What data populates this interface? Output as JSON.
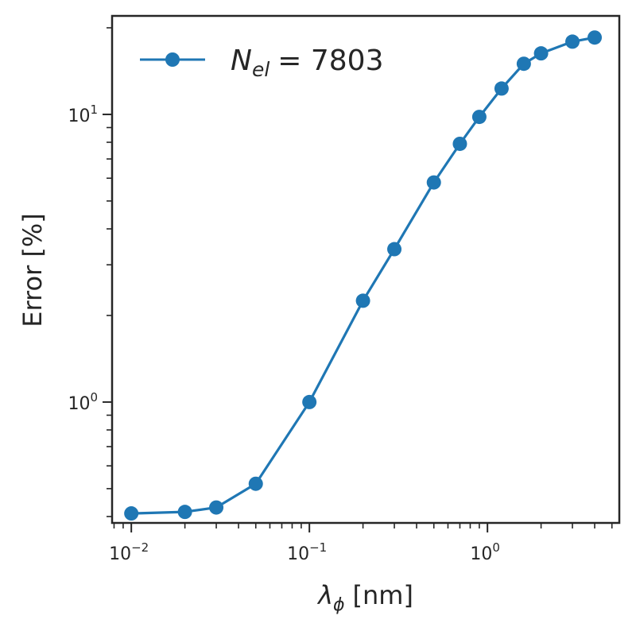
{
  "chart_data": {
    "type": "line",
    "xlabel_symbol": "λ",
    "xlabel_sub": "ϕ",
    "xlabel_unit": "[nm]",
    "ylabel": "Error [%]",
    "xscale": "log",
    "yscale": "log",
    "xlim": [
      0.0078,
      5.5
    ],
    "ylim": [
      0.38,
      22
    ],
    "grid": false,
    "legend_placement": "top-left",
    "x_ticks": [
      {
        "value": 0.01,
        "base": "10",
        "exp": "−2"
      },
      {
        "value": 0.1,
        "base": "10",
        "exp": "−1"
      },
      {
        "value": 1,
        "base": "10",
        "exp": "0"
      }
    ],
    "y_ticks": [
      {
        "value": 1,
        "base": "10",
        "exp": "0"
      },
      {
        "value": 10,
        "base": "10",
        "exp": "1"
      }
    ],
    "series": [
      {
        "legend_var": "N",
        "legend_sub": "el",
        "legend_value": "= 7803",
        "color": "#1f77b4",
        "x": [
          0.01,
          0.02,
          0.03,
          0.05,
          0.1,
          0.2,
          0.3,
          0.5,
          0.7,
          0.9,
          1.2,
          1.6,
          2.0,
          3.0,
          4.0
        ],
        "y": [
          0.41,
          0.415,
          0.43,
          0.52,
          1.0,
          2.25,
          3.4,
          5.8,
          7.9,
          9.8,
          12.3,
          15.0,
          16.3,
          17.9,
          18.5
        ]
      }
    ]
  }
}
